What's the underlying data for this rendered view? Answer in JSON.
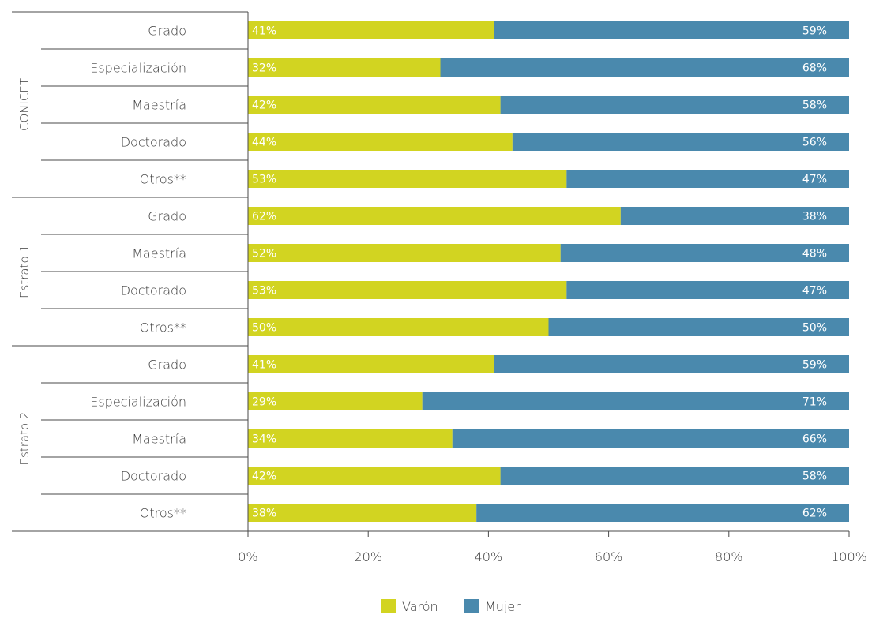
{
  "chart_data": {
    "type": "bar",
    "orientation": "horizontal",
    "stacked": true,
    "xlim": [
      0,
      100
    ],
    "x_ticks": [
      "0%",
      "20%",
      "40%",
      "60%",
      "80%",
      "100%"
    ],
    "legend_position": "bottom",
    "groups": [
      {
        "name": "CONICET",
        "categories": [
          "Grado",
          "Especialización",
          "Maestría",
          "Doctorado",
          "Otros**"
        ],
        "varon": [
          41,
          32,
          42,
          44,
          53
        ],
        "mujer": [
          59,
          68,
          58,
          56,
          47
        ],
        "varon_labels": [
          "41%",
          "32%",
          "42%",
          "44%",
          "53%"
        ],
        "mujer_labels": [
          "59%",
          "68%",
          "58%",
          "56%",
          "47%"
        ]
      },
      {
        "name": "Estrato 1",
        "categories": [
          "Grado",
          "Maestría",
          "Doctorado",
          "Otros**"
        ],
        "varon": [
          62,
          52,
          53,
          50
        ],
        "mujer": [
          38,
          48,
          47,
          50
        ],
        "varon_labels": [
          "62%",
          "52%",
          "53%",
          "50%"
        ],
        "mujer_labels": [
          "38%",
          "48%",
          "47%",
          "50%"
        ]
      },
      {
        "name": "Estrato 2",
        "categories": [
          "Grado",
          "Especialización",
          "Maestría",
          "Doctorado",
          "Otros**"
        ],
        "varon": [
          41,
          29,
          34,
          42,
          38
        ],
        "mujer": [
          59,
          71,
          66,
          58,
          62
        ],
        "varon_labels": [
          "41%",
          "29%",
          "34%",
          "42%",
          "38%"
        ],
        "mujer_labels": [
          "59%",
          "71%",
          "66%",
          "58%",
          "62%"
        ]
      }
    ],
    "series": [
      {
        "name": "Varón",
        "color": "#d2d421"
      },
      {
        "name": "Mujer",
        "color": "#4a89ad"
      }
    ]
  }
}
